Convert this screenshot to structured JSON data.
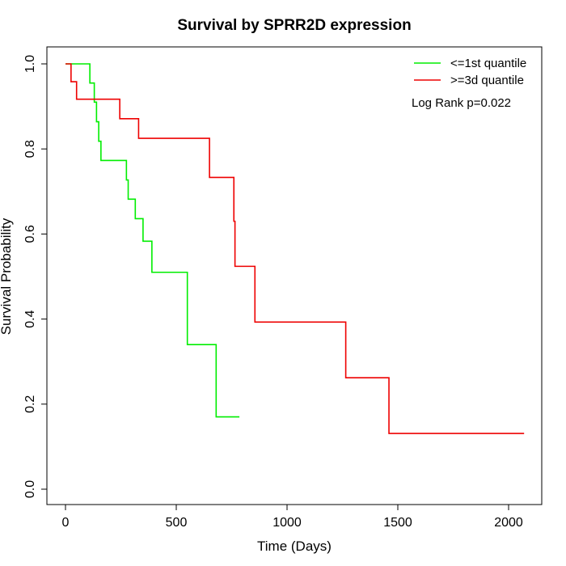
{
  "chart_data": {
    "type": "line",
    "title": "Survival by SPRR2D expression",
    "xlabel": "Time (Days)",
    "ylabel": "Survival Probability",
    "xlim": [
      0,
      2070
    ],
    "ylim": [
      0,
      1.0
    ],
    "x_ticks": [
      0,
      500,
      1000,
      1500,
      2000
    ],
    "x_tick_labels": [
      "0",
      "500",
      "1000",
      "1500",
      "2000"
    ],
    "y_ticks": [
      0.0,
      0.2,
      0.4,
      0.6,
      0.8,
      1.0
    ],
    "y_tick_labels": [
      "0.0",
      "0.2",
      "0.4",
      "0.6",
      "0.8",
      "1.0"
    ],
    "grid": false,
    "legend_position": "top-right",
    "annotation": "Log Rank p=0.022",
    "series": [
      {
        "name": "<=1st quantile",
        "color": "#00ee00",
        "step": "post",
        "points": [
          [
            0,
            1.0
          ],
          [
            110,
            0.955
          ],
          [
            130,
            0.91
          ],
          [
            140,
            0.864
          ],
          [
            150,
            0.818
          ],
          [
            160,
            0.773
          ],
          [
            275,
            0.727
          ],
          [
            283,
            0.682
          ],
          [
            315,
            0.636
          ],
          [
            350,
            0.583
          ],
          [
            390,
            0.51
          ],
          [
            550,
            0.34
          ],
          [
            680,
            0.17
          ],
          [
            785,
            0.17
          ]
        ]
      },
      {
        "name": ">=3d quantile",
        "color": "#ee0000",
        "step": "post",
        "points": [
          [
            0,
            1.0
          ],
          [
            25,
            0.958
          ],
          [
            50,
            0.917
          ],
          [
            245,
            0.871
          ],
          [
            330,
            0.825
          ],
          [
            650,
            0.733
          ],
          [
            760,
            0.63
          ],
          [
            765,
            0.524
          ],
          [
            855,
            0.393
          ],
          [
            1265,
            0.262
          ],
          [
            1460,
            0.131
          ],
          [
            2070,
            0.131
          ]
        ]
      }
    ]
  }
}
